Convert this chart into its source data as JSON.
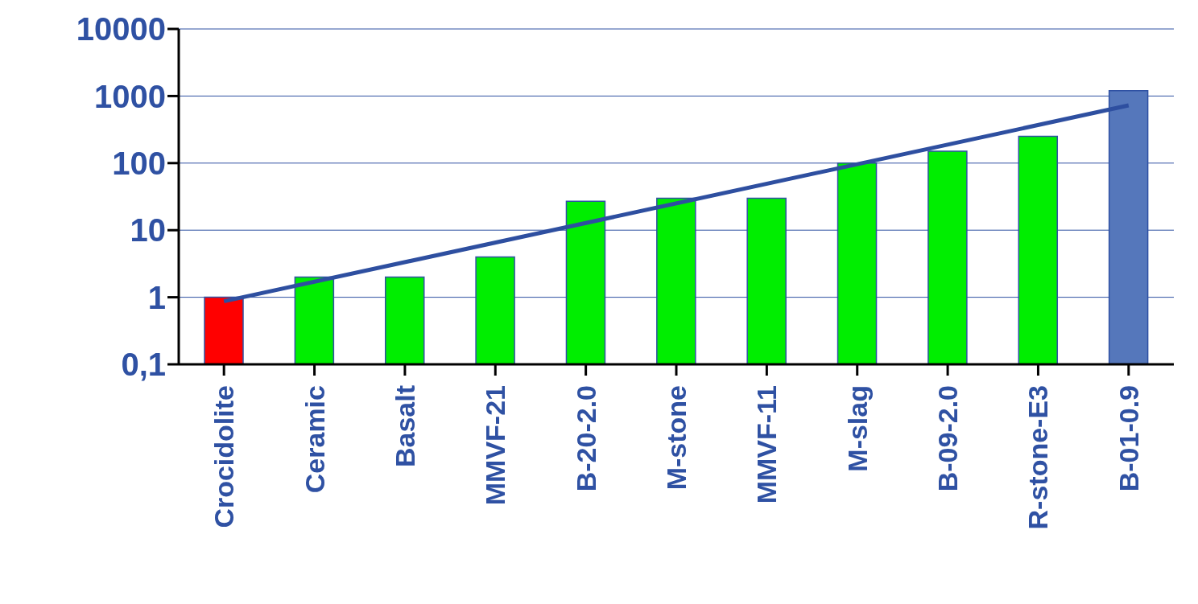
{
  "chart_data": {
    "type": "bar",
    "categories": [
      "Crocidolite",
      "Ceramic",
      "Basalt",
      "MMVF-21",
      "B-20-2.0",
      "M-stone",
      "MMVF-11",
      "M-slag",
      "B-09-2.0",
      "R-stone-E3",
      "B-01-0.9"
    ],
    "series": [
      {
        "colors": [
          "#ff0000",
          "#00ee00",
          "#00ee00",
          "#00ee00",
          "#00ee00",
          "#00ee00",
          "#00ee00",
          "#00ee00",
          "#00ee00",
          "#00ee00",
          "#5577bb"
        ],
        "values": [
          1,
          2,
          2,
          4,
          27,
          30,
          30,
          100,
          150,
          250,
          1200
        ]
      },
      {
        "type": "line",
        "color": "#2e4fa0",
        "values": [
          0.87,
          null,
          null,
          null,
          null,
          null,
          null,
          null,
          null,
          null,
          725
        ]
      }
    ],
    "ylim": [
      0.1,
      10000
    ],
    "yticks": [
      {
        "value": 0.1,
        "label": "0,1"
      },
      1,
      10,
      100,
      1000,
      10000
    ],
    "log": true,
    "grid": "y",
    "marker": "none",
    "line_style": "solid"
  }
}
